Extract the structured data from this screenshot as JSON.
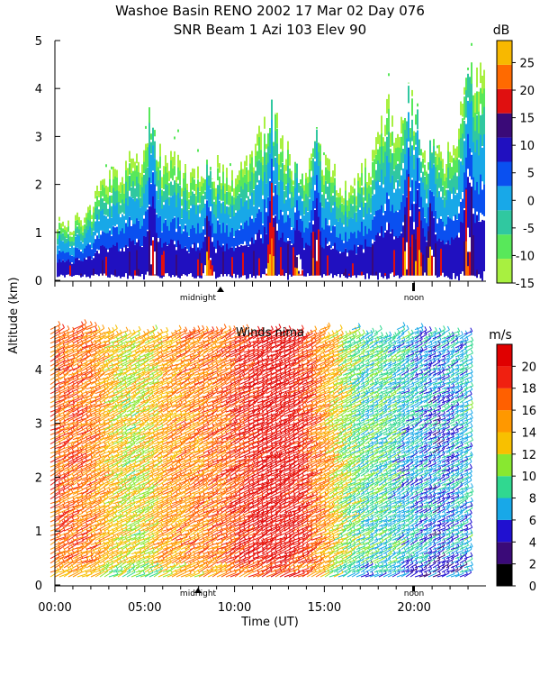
{
  "title_line1": "Washoe Basin RENO 2002  17 Mar 02 Day 076",
  "title_line2": "SNR Beam 1 Azi 103 Elev 90",
  "ylabel": "Altitude (km)",
  "xlabel": "Time (UT)",
  "marker_midnight": "midnight",
  "marker_noon": "noon",
  "chart_data": [
    {
      "id": "snr",
      "type": "heatmap",
      "title": "",
      "colorbar_label": "dB",
      "ylim": [
        0,
        5
      ],
      "yticks": [
        "0",
        "1",
        "2",
        "3",
        "4",
        "5"
      ],
      "clim": [
        -15,
        29
      ],
      "colorbar_ticks": [
        "-15",
        "-10",
        "-5",
        "0",
        "5",
        "10",
        "15",
        "20",
        "25"
      ],
      "colorbar_tick_values": [
        -15,
        -10,
        -5,
        0,
        5,
        10,
        15,
        20,
        25
      ],
      "colorbar_colors": [
        "#a8f040",
        "#58e85a",
        "#30c8a0",
        "#18a8e8",
        "#0a50f0",
        "#2010c0",
        "#3a0a78",
        "#e01010",
        "#ff6a00",
        "#f8b800"
      ],
      "top_altitude_profile_km": [
        [
          0.0,
          1.3
        ],
        [
          0.5,
          1.2
        ],
        [
          1.0,
          1.2
        ],
        [
          1.5,
          1.3
        ],
        [
          2.0,
          1.5
        ],
        [
          2.5,
          1.9
        ],
        [
          3.0,
          2.1
        ],
        [
          3.5,
          2.3
        ],
        [
          4.0,
          2.4
        ],
        [
          4.5,
          2.3
        ],
        [
          5.0,
          2.6
        ],
        [
          5.3,
          3.5
        ],
        [
          5.6,
          2.6
        ],
        [
          6.0,
          2.5
        ],
        [
          6.5,
          2.6
        ],
        [
          7.0,
          2.2
        ],
        [
          7.5,
          2.0
        ],
        [
          8.0,
          2.2
        ],
        [
          8.5,
          2.4
        ],
        [
          9.0,
          2.3
        ],
        [
          9.5,
          2.1
        ],
        [
          10.0,
          2.2
        ],
        [
          10.5,
          2.5
        ],
        [
          11.0,
          2.7
        ],
        [
          11.5,
          2.9
        ],
        [
          12.0,
          3.3
        ],
        [
          12.5,
          3.0
        ],
        [
          13.0,
          2.6
        ],
        [
          13.5,
          2.1
        ],
        [
          14.0,
          2.4
        ],
        [
          14.5,
          2.8
        ],
        [
          15.0,
          2.5
        ],
        [
          15.5,
          2.2
        ],
        [
          16.0,
          1.8
        ],
        [
          16.5,
          2.0
        ],
        [
          17.0,
          2.2
        ],
        [
          17.5,
          2.5
        ],
        [
          18.0,
          3.0
        ],
        [
          18.5,
          3.6
        ],
        [
          19.0,
          2.7
        ],
        [
          19.5,
          3.8
        ],
        [
          20.0,
          3.5
        ],
        [
          20.5,
          2.6
        ],
        [
          21.0,
          2.9
        ],
        [
          21.5,
          2.4
        ],
        [
          22.0,
          2.6
        ],
        [
          22.5,
          3.2
        ],
        [
          23.0,
          4.5
        ],
        [
          23.2,
          4.2
        ]
      ],
      "dense_columns_utc_hours": [
        5.4,
        8.5,
        12.0,
        13.5,
        14.5,
        19.6,
        20.2,
        20.9,
        23.0
      ]
    },
    {
      "id": "winds",
      "type": "heatmap",
      "title": "Winds nima",
      "colorbar_label": "m/s",
      "ylim": [
        0,
        4.8
      ],
      "yticks": [
        "0",
        "1",
        "2",
        "3",
        "4"
      ],
      "clim": [
        0,
        22
      ],
      "colorbar_ticks": [
        "0",
        "2",
        "4",
        "6",
        "8",
        "10",
        "12",
        "14",
        "16",
        "18",
        "20"
      ],
      "colorbar_tick_values": [
        0,
        2,
        4,
        6,
        8,
        10,
        12,
        14,
        16,
        18,
        20
      ],
      "colorbar_colors": [
        "#000000",
        "#3a0a78",
        "#2010d0",
        "#18a8e8",
        "#30d890",
        "#88e830",
        "#f8c000",
        "#ff9800",
        "#ff6000",
        "#f02010",
        "#e00000"
      ],
      "speed_pattern_ms_by_hour": [
        [
          0.0,
          17
        ],
        [
          1.0,
          17
        ],
        [
          2.0,
          16
        ],
        [
          3.0,
          13
        ],
        [
          4.0,
          12
        ],
        [
          5.0,
          13
        ],
        [
          6.0,
          15
        ],
        [
          7.0,
          16
        ],
        [
          8.0,
          16
        ],
        [
          9.0,
          17
        ],
        [
          10.0,
          19
        ],
        [
          11.0,
          20
        ],
        [
          12.0,
          21
        ],
        [
          13.0,
          20
        ],
        [
          14.0,
          18
        ],
        [
          15.0,
          14
        ],
        [
          16.0,
          11
        ],
        [
          17.0,
          9
        ],
        [
          18.0,
          9
        ],
        [
          19.0,
          8
        ],
        [
          20.0,
          7
        ],
        [
          21.0,
          6
        ],
        [
          22.0,
          7
        ],
        [
          23.0,
          8
        ]
      ],
      "xlim_hours": [
        0,
        24
      ],
      "xticks": [
        "00:00",
        "05:00",
        "10:00",
        "15:00",
        "20:00"
      ],
      "xtick_hours": [
        0,
        5,
        10,
        15,
        20
      ]
    }
  ]
}
